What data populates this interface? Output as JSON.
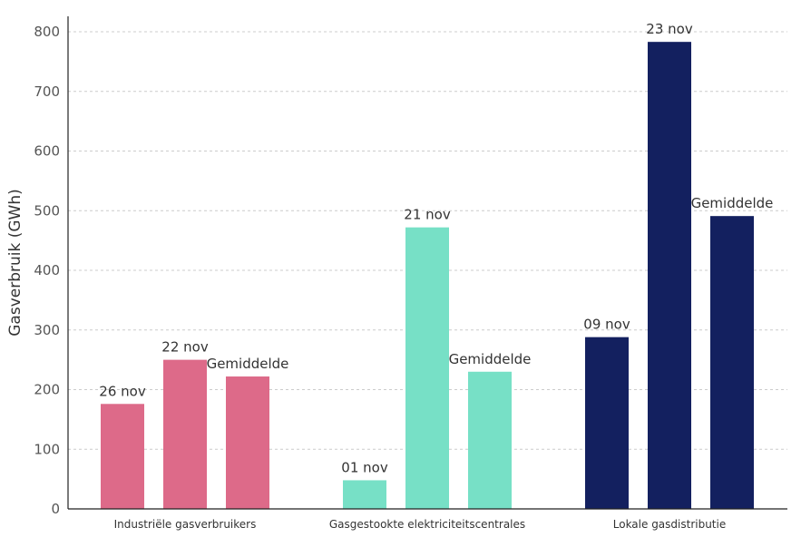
{
  "chart_data": {
    "type": "bar",
    "title": "",
    "xlabel": "",
    "ylabel": "Gasverbruik (GWh)",
    "ylim": [
      0,
      820
    ],
    "yticks": [
      0,
      100,
      200,
      300,
      400,
      500,
      600,
      700,
      800
    ],
    "grid": true,
    "groups": [
      {
        "name": "Industriële gasverbruikers",
        "color": "#DD6A89",
        "bars": [
          {
            "label": "26 nov",
            "value": 176
          },
          {
            "label": "22 nov",
            "value": 250
          },
          {
            "label": "Gemiddelde",
            "value": 222
          }
        ]
      },
      {
        "name": "Gasgestookte elektriciteitscentrales",
        "color": "#77E0C6",
        "bars": [
          {
            "label": "01 nov",
            "value": 48
          },
          {
            "label": "21 nov",
            "value": 472
          },
          {
            "label": "Gemiddelde",
            "value": 230
          }
        ]
      },
      {
        "name": "Lokale gasdistributie",
        "color": "#13205F",
        "bars": [
          {
            "label": "09 nov",
            "value": 288
          },
          {
            "label": "23 nov",
            "value": 783
          },
          {
            "label": "Gemiddelde",
            "value": 491
          }
        ]
      }
    ]
  }
}
